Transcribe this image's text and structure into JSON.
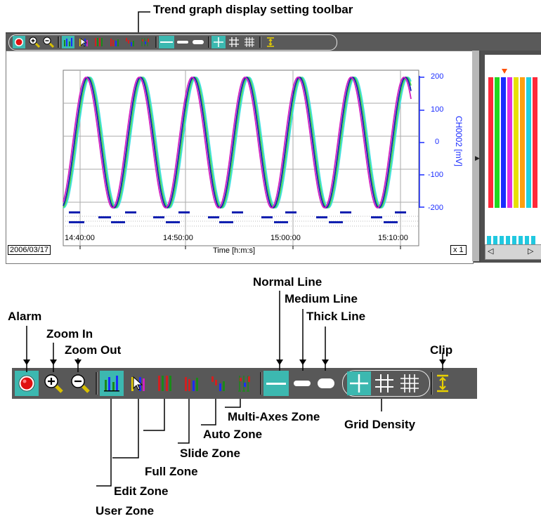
{
  "callouts": {
    "toolbar_title": "Trend graph display setting toolbar",
    "alarm": "Alarm",
    "zoom_in": "Zoom In",
    "zoom_out": "Zoom Out",
    "normal_line": "Normal Line",
    "medium_line": "Medium Line",
    "thick_line": "Thick Line",
    "clip": "Clip",
    "grid_density": "Grid Density",
    "multi_axes_zone": "Multi-Axes Zone",
    "auto_zone": "Auto Zone",
    "slide_zone": "Slide Zone",
    "full_zone": "Full Zone",
    "edit_zone": "Edit Zone",
    "user_zone": "User Zone"
  },
  "graph": {
    "date": "2006/03/17",
    "x_axis_label": "Time [h:m:s]",
    "x_ticks": [
      "14:40:00",
      "14:50:00",
      "15:00:00",
      "15:10:00"
    ],
    "y_ticks": [
      "200",
      "100",
      "0",
      "-100",
      "-200"
    ],
    "y_axis_label": "CH0002 [mV]",
    "magnification": "x 1"
  },
  "colors": {
    "toolbar_bg": "#5a5a5a",
    "selected_bg": "#3cb8b0",
    "axis_blue": "#1a2cff",
    "trace_cyan": "#40e0e0",
    "trace_green": "#4cd850",
    "trace_navy": "#1020b0",
    "trace_magenta": "#d020c0"
  },
  "icons": [
    "alarm-icon",
    "zoom-in-icon",
    "zoom-out-icon",
    "user-zone-icon",
    "edit-zone-icon",
    "full-zone-icon",
    "slide-zone-icon",
    "auto-zone-icon",
    "multi-axes-zone-icon",
    "normal-line-icon",
    "medium-line-icon",
    "thick-line-icon",
    "grid-coarse-icon",
    "grid-medium-icon",
    "grid-fine-icon",
    "clip-icon"
  ]
}
